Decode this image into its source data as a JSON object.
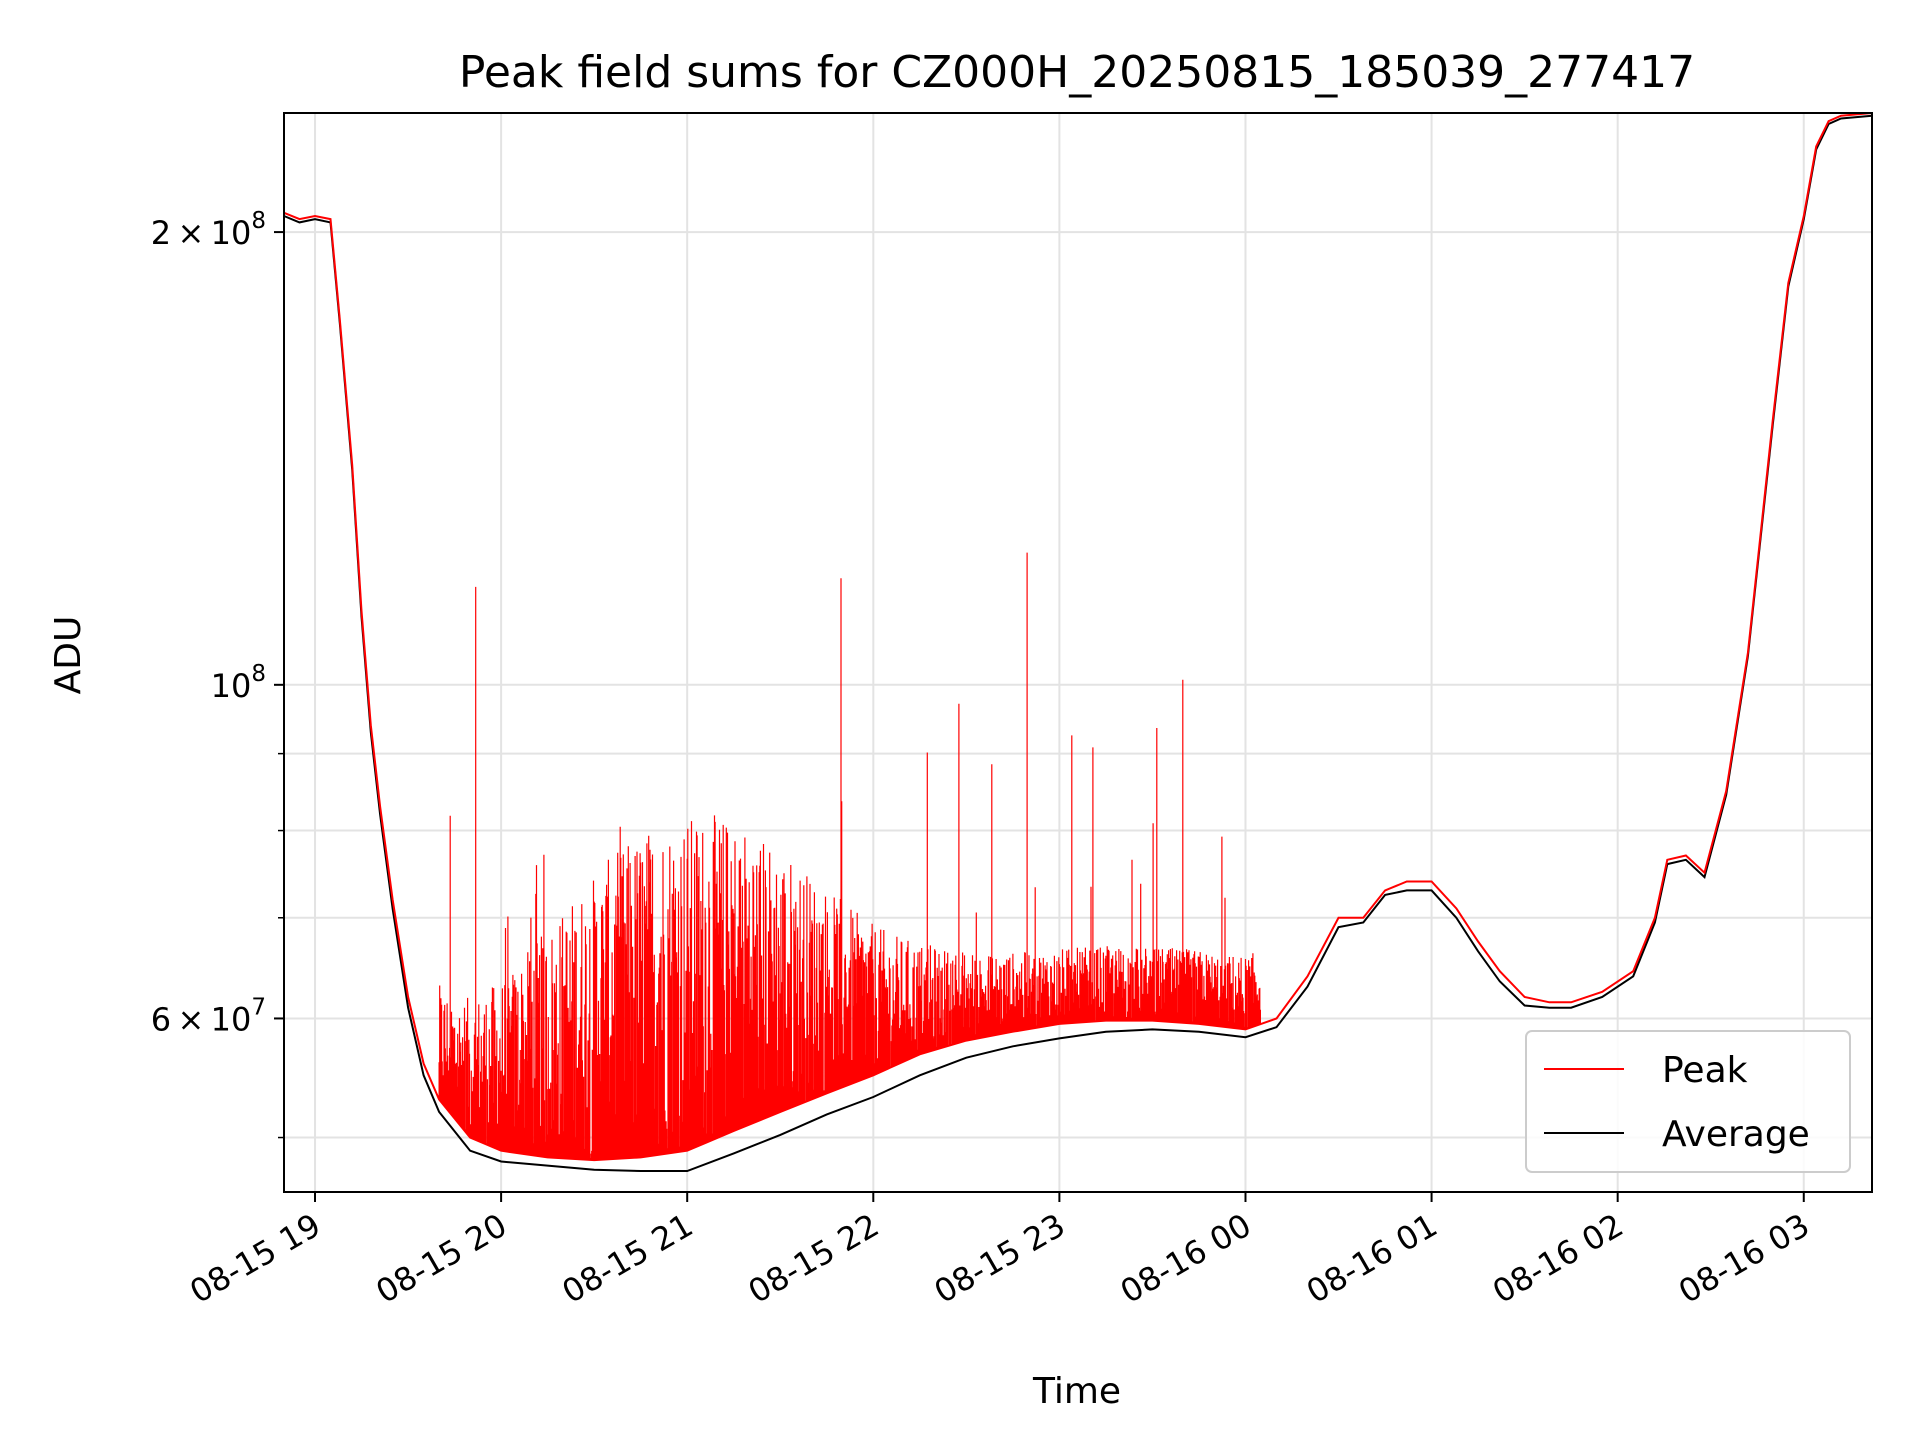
{
  "chart_data": {
    "type": "line",
    "title": "Peak field sums for CZ000H_20250815_185039_277417",
    "xlabel": "Time",
    "ylabel": "ADU",
    "y_scale": "log",
    "ylim": [
      46000000,
      240000000
    ],
    "xlim": [
      "2025-08-15 18:50",
      "2025-08-16 03:22"
    ],
    "grid": true,
    "legend_position": "lower-right",
    "x_ticks": [
      {
        "value": "2025-08-15 19:00",
        "label": "08-15 19"
      },
      {
        "value": "2025-08-15 20:00",
        "label": "08-15 20"
      },
      {
        "value": "2025-08-15 21:00",
        "label": "08-15 21"
      },
      {
        "value": "2025-08-15 22:00",
        "label": "08-15 22"
      },
      {
        "value": "2025-08-15 23:00",
        "label": "08-15 23"
      },
      {
        "value": "2025-08-16 00:00",
        "label": "08-16 00"
      },
      {
        "value": "2025-08-16 01:00",
        "label": "08-16 01"
      },
      {
        "value": "2025-08-16 02:00",
        "label": "08-16 02"
      },
      {
        "value": "2025-08-16 03:00",
        "label": "08-16 03"
      }
    ],
    "y_ticks_major": [
      {
        "value": 100000000,
        "base": "10",
        "exp": "8"
      },
      {
        "value": 200000000,
        "mant": "2",
        "times": "×",
        "base": "10",
        "exp": "8"
      },
      {
        "value": 60000000,
        "mant": "6",
        "times": "×",
        "base": "10",
        "exp": "7"
      }
    ],
    "y_ticks_minor": [
      50000000,
      70000000,
      80000000,
      90000000,
      300000000
    ],
    "series": [
      {
        "name": "Peak",
        "color": "#ff0000",
        "x": [
          "2025-08-15 18:50",
          "2025-08-15 18:55",
          "2025-08-15 19:00",
          "2025-08-15 19:05",
          "2025-08-15 19:08",
          "2025-08-15 19:12",
          "2025-08-15 19:15",
          "2025-08-15 19:18",
          "2025-08-15 19:21",
          "2025-08-15 19:25",
          "2025-08-15 19:30",
          "2025-08-15 19:35",
          "2025-08-15 19:40",
          "2025-08-15 19:50",
          "2025-08-15 20:00",
          "2025-08-15 20:15",
          "2025-08-15 20:30",
          "2025-08-15 20:45",
          "2025-08-15 21:00",
          "2025-08-15 21:15",
          "2025-08-15 21:30",
          "2025-08-15 21:45",
          "2025-08-15 22:00",
          "2025-08-15 22:15",
          "2025-08-15 22:30",
          "2025-08-15 22:45",
          "2025-08-15 23:00",
          "2025-08-15 23:15",
          "2025-08-15 23:30",
          "2025-08-15 23:45",
          "2025-08-16 00:00",
          "2025-08-16 00:10",
          "2025-08-16 00:20",
          "2025-08-16 00:30",
          "2025-08-16 00:38",
          "2025-08-16 00:45",
          "2025-08-16 00:52",
          "2025-08-16 01:00",
          "2025-08-16 01:08",
          "2025-08-16 01:15",
          "2025-08-16 01:22",
          "2025-08-16 01:30",
          "2025-08-16 01:38",
          "2025-08-16 01:45",
          "2025-08-16 01:55",
          "2025-08-16 02:05",
          "2025-08-16 02:12",
          "2025-08-16 02:16",
          "2025-08-16 02:22",
          "2025-08-16 02:28",
          "2025-08-16 02:35",
          "2025-08-16 02:42",
          "2025-08-16 02:50",
          "2025-08-16 02:55",
          "2025-08-16 03:00",
          "2025-08-16 03:04",
          "2025-08-16 03:08",
          "2025-08-16 03:12",
          "2025-08-16 03:22"
        ],
        "y": [
          206000000,
          204000000,
          205000000,
          204000000,
          175000000,
          140000000,
          112000000,
          94000000,
          83000000,
          72000000,
          62000000,
          56000000,
          53000000,
          50000000,
          49000000,
          48500000,
          48300000,
          48500000,
          49000000,
          50500000,
          52000000,
          53500000,
          55000000,
          56800000,
          58000000,
          58800000,
          59500000,
          59800000,
          59800000,
          59500000,
          59000000,
          60000000,
          64000000,
          70000000,
          70000000,
          73000000,
          74000000,
          74000000,
          71000000,
          67500000,
          64500000,
          62000000,
          61500000,
          61500000,
          62500000,
          64500000,
          70000000,
          76500000,
          77000000,
          75000000,
          85000000,
          105000000,
          150000000,
          185000000,
          205000000,
          228000000,
          237000000,
          239000000,
          240000000
        ]
      },
      {
        "name": "Average",
        "color": "#000000",
        "x": [
          "2025-08-15 18:50",
          "2025-08-15 18:55",
          "2025-08-15 19:00",
          "2025-08-15 19:05",
          "2025-08-15 19:08",
          "2025-08-15 19:12",
          "2025-08-15 19:15",
          "2025-08-15 19:18",
          "2025-08-15 19:21",
          "2025-08-15 19:25",
          "2025-08-15 19:30",
          "2025-08-15 19:35",
          "2025-08-15 19:40",
          "2025-08-15 19:50",
          "2025-08-15 20:00",
          "2025-08-15 20:15",
          "2025-08-15 20:30",
          "2025-08-15 20:45",
          "2025-08-15 21:00",
          "2025-08-15 21:15",
          "2025-08-15 21:30",
          "2025-08-15 21:45",
          "2025-08-15 22:00",
          "2025-08-15 22:15",
          "2025-08-15 22:30",
          "2025-08-15 22:45",
          "2025-08-15 23:00",
          "2025-08-15 23:15",
          "2025-08-15 23:30",
          "2025-08-15 23:45",
          "2025-08-16 00:00",
          "2025-08-16 00:10",
          "2025-08-16 00:20",
          "2025-08-16 00:30",
          "2025-08-16 00:38",
          "2025-08-16 00:45",
          "2025-08-16 00:52",
          "2025-08-16 01:00",
          "2025-08-16 01:08",
          "2025-08-16 01:15",
          "2025-08-16 01:22",
          "2025-08-16 01:30",
          "2025-08-16 01:38",
          "2025-08-16 01:45",
          "2025-08-16 01:55",
          "2025-08-16 02:05",
          "2025-08-16 02:12",
          "2025-08-16 02:16",
          "2025-08-16 02:22",
          "2025-08-16 02:28",
          "2025-08-16 02:35",
          "2025-08-16 02:42",
          "2025-08-16 02:50",
          "2025-08-16 02:55",
          "2025-08-16 03:00",
          "2025-08-16 03:04",
          "2025-08-16 03:08",
          "2025-08-16 03:12",
          "2025-08-16 03:22"
        ],
        "y": [
          205000000,
          203000000,
          204000000,
          203000000,
          174000000,
          139000000,
          111000000,
          93000000,
          82000000,
          71000000,
          61000000,
          55000000,
          52000000,
          49000000,
          48200000,
          47900000,
          47600000,
          47500000,
          47500000,
          48800000,
          50200000,
          51800000,
          53200000,
          55000000,
          56500000,
          57500000,
          58200000,
          58800000,
          59000000,
          58800000,
          58300000,
          59200000,
          63000000,
          69000000,
          69500000,
          72500000,
          73000000,
          73000000,
          70000000,
          66500000,
          63500000,
          61200000,
          61000000,
          61000000,
          62000000,
          64000000,
          69500000,
          76000000,
          76500000,
          74500000,
          84500000,
          104500000,
          149000000,
          184000000,
          204000000,
          227000000,
          236000000,
          238000000,
          239000000
        ]
      }
    ]
  }
}
